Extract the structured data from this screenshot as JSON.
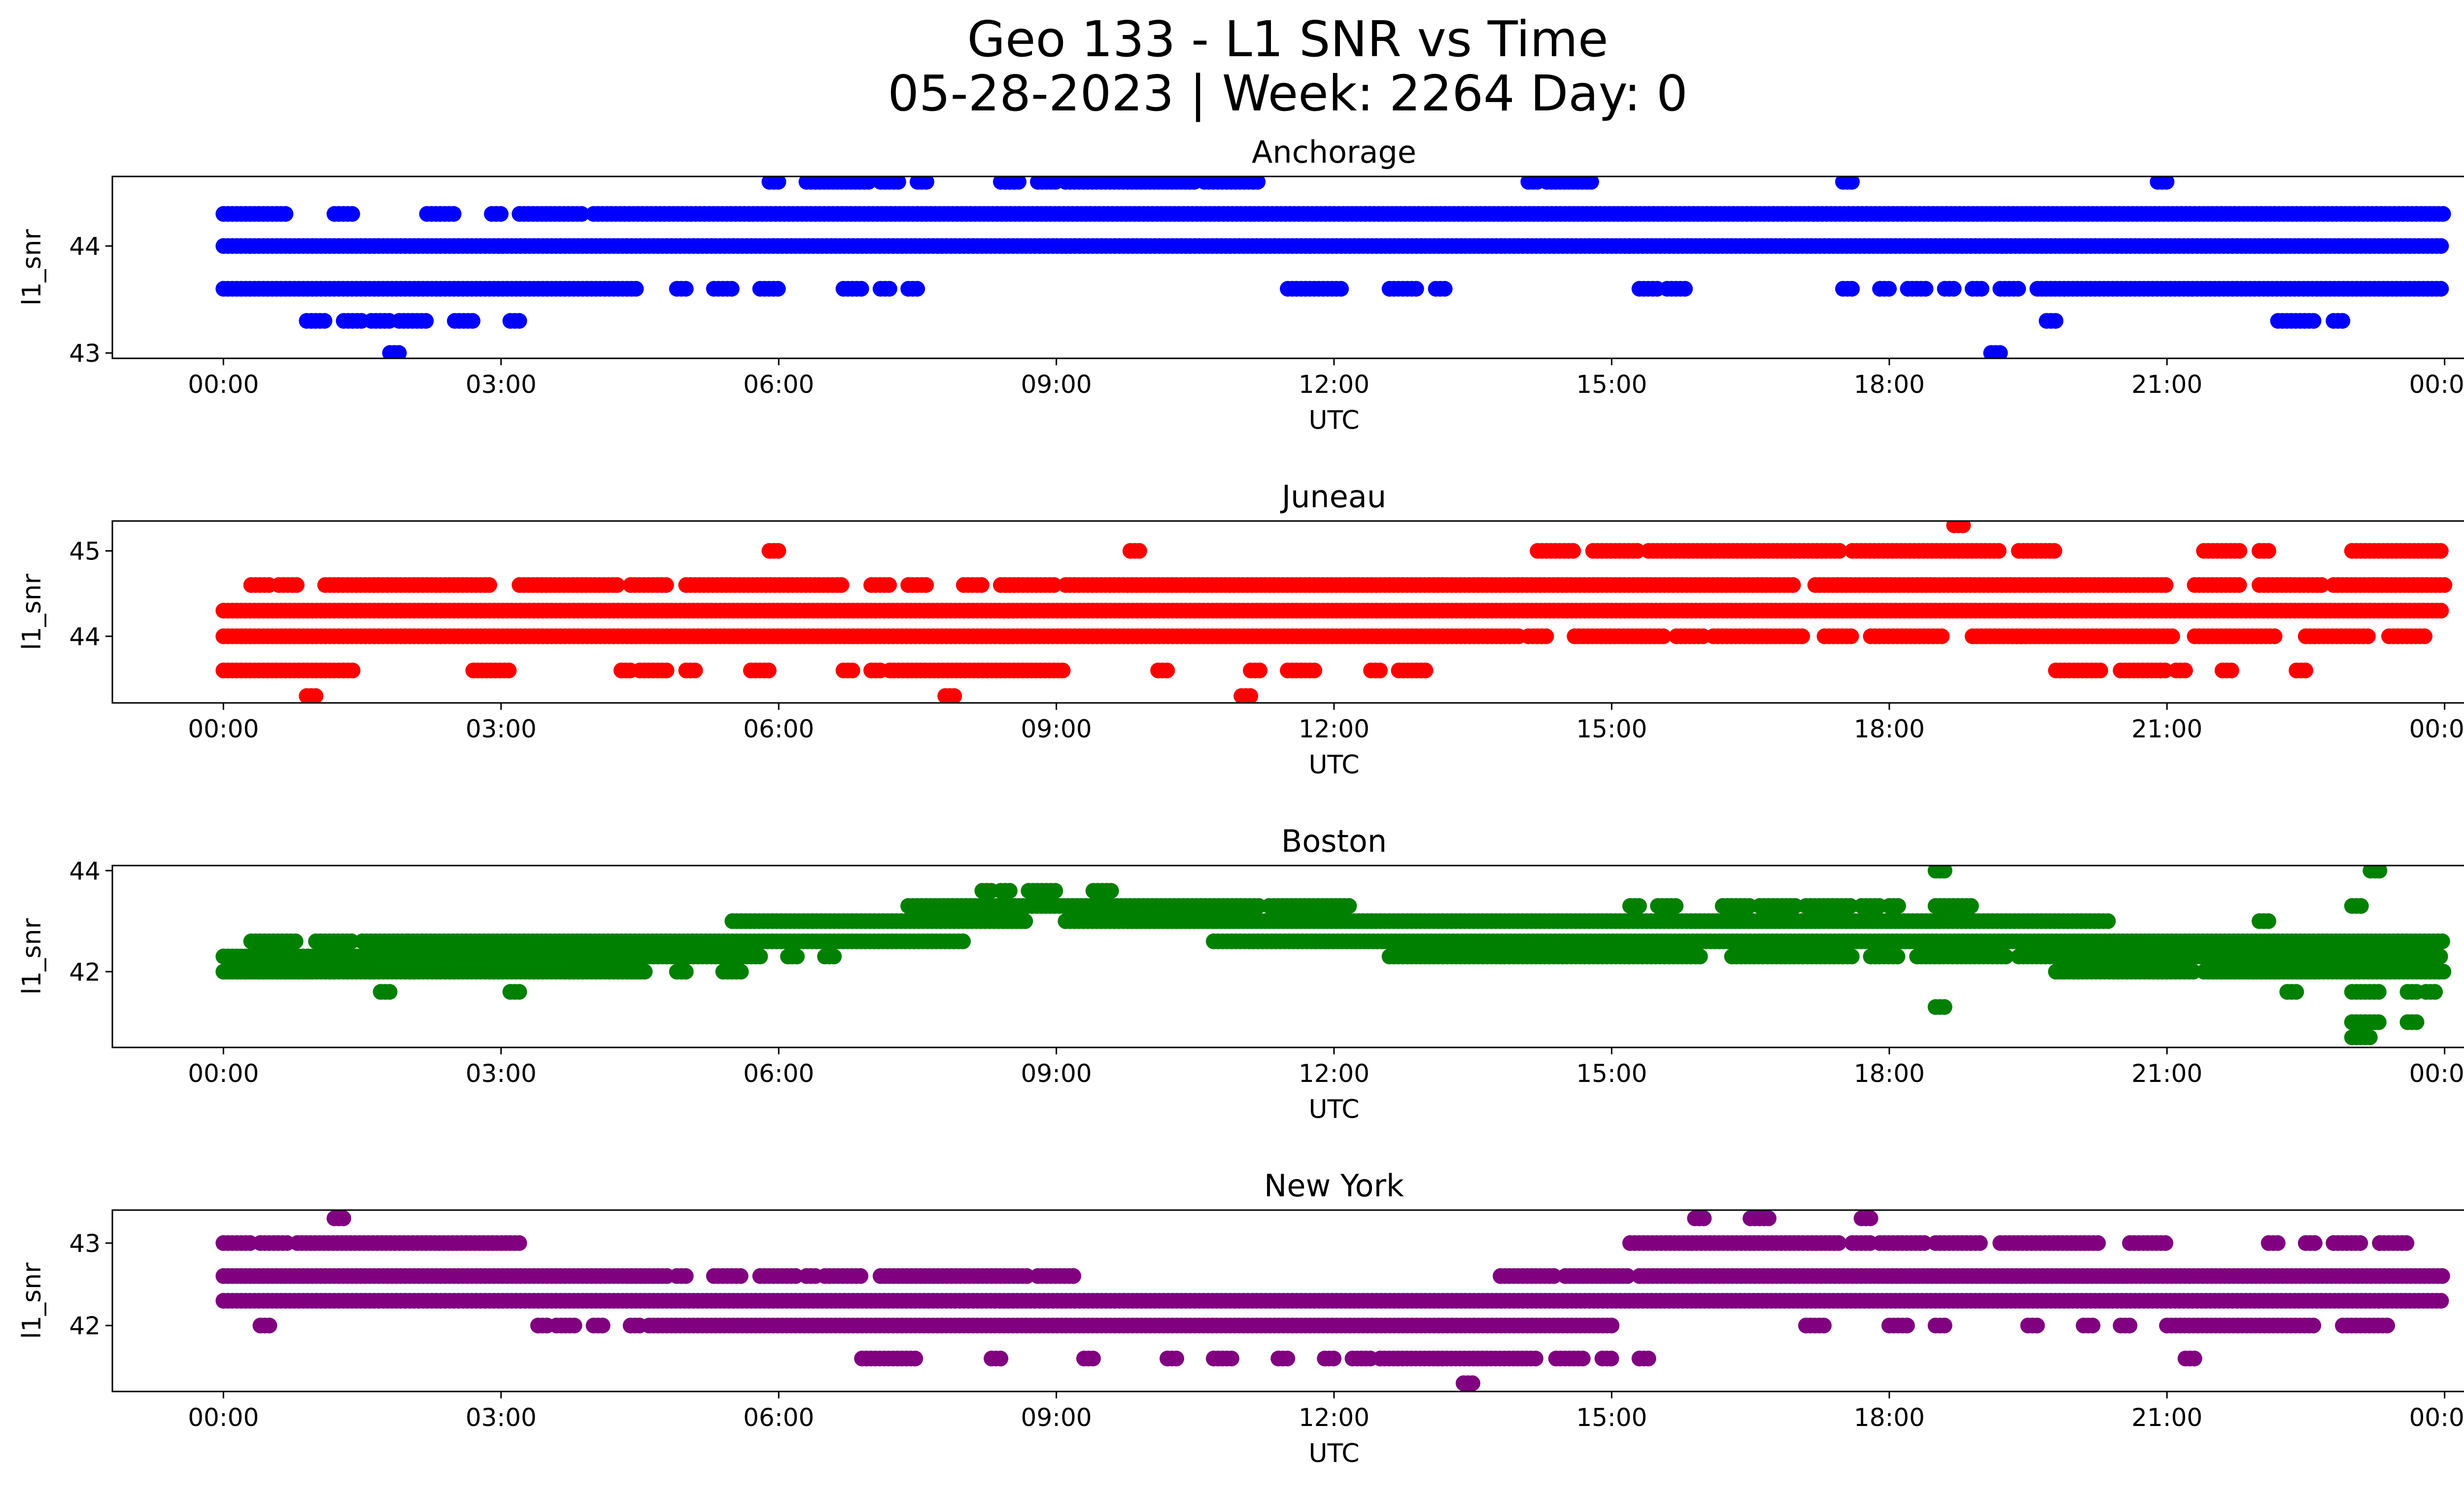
{
  "figure": {
    "title_line1": "Geo 133 - L1 SNR vs Time",
    "title_line2": "05-28-2023 | Week: 2264 Day: 0"
  },
  "chart_data": [
    {
      "type": "scatter",
      "title": "Anchorage",
      "xlabel": "UTC",
      "ylabel": "l1_snr",
      "color": "#0000ff",
      "x_ticks": [
        "00:00",
        "03:00",
        "06:00",
        "09:00",
        "12:00",
        "15:00",
        "18:00",
        "21:00",
        "00:00"
      ],
      "xlim_hours": [
        -1.2,
        25.2
      ],
      "ylim": [
        42.95,
        44.65
      ],
      "y_ticks": [
        43,
        44
      ],
      "levels": [
        {
          "y": 44.0,
          "ranges": [
            [
              0.0,
              24.0
            ]
          ]
        },
        {
          "y": 44.3,
          "ranges": [
            [
              0.0,
              0.7
            ],
            [
              1.2,
              1.4
            ],
            [
              2.2,
              2.5
            ],
            [
              2.9,
              3.0
            ],
            [
              3.2,
              3.9
            ],
            [
              4.0,
              24.0
            ]
          ]
        },
        {
          "y": 43.6,
          "ranges": [
            [
              0.0,
              4.5
            ],
            [
              4.9,
              5.0
            ],
            [
              5.3,
              5.5
            ],
            [
              5.8,
              6.0
            ],
            [
              6.7,
              6.9
            ],
            [
              7.1,
              7.2
            ],
            [
              7.4,
              7.5
            ],
            [
              11.5,
              12.1
            ],
            [
              12.6,
              12.9
            ],
            [
              13.1,
              13.2
            ],
            [
              15.3,
              15.5
            ],
            [
              15.6,
              15.8
            ],
            [
              17.5,
              17.6
            ],
            [
              17.9,
              18.0
            ],
            [
              18.2,
              18.4
            ],
            [
              18.6,
              18.7
            ],
            [
              18.9,
              19.0
            ],
            [
              19.2,
              19.4
            ],
            [
              19.6,
              24.0
            ]
          ]
        },
        {
          "y": 44.6,
          "ranges": [
            [
              5.9,
              6.0
            ],
            [
              6.3,
              7.0
            ],
            [
              7.1,
              7.3
            ],
            [
              7.5,
              7.6
            ],
            [
              8.4,
              8.6
            ],
            [
              8.8,
              9.0
            ],
            [
              9.1,
              10.5
            ],
            [
              10.6,
              11.2
            ],
            [
              14.1,
              14.2
            ],
            [
              14.3,
              14.8
            ],
            [
              17.5,
              17.6
            ],
            [
              20.9,
              21.0
            ]
          ]
        },
        {
          "y": 43.3,
          "ranges": [
            [
              0.9,
              1.1
            ],
            [
              1.3,
              1.5
            ],
            [
              1.6,
              1.8
            ],
            [
              1.9,
              2.2
            ],
            [
              2.5,
              2.7
            ],
            [
              3.1,
              3.2
            ],
            [
              19.7,
              19.8
            ],
            [
              22.2,
              22.6
            ],
            [
              22.8,
              22.9
            ]
          ]
        },
        {
          "y": 43.0,
          "ranges": [
            [
              1.8,
              1.9
            ],
            [
              19.1,
              19.2
            ]
          ]
        }
      ]
    },
    {
      "type": "scatter",
      "title": "Juneau",
      "xlabel": "UTC",
      "ylabel": "l1_snr",
      "color": "#ff0000",
      "x_ticks": [
        "00:00",
        "03:00",
        "06:00",
        "09:00",
        "12:00",
        "15:00",
        "18:00",
        "21:00",
        "00:00"
      ],
      "xlim_hours": [
        -1.2,
        25.2
      ],
      "ylim": [
        43.22,
        45.35
      ],
      "y_ticks": [
        44,
        45
      ],
      "levels": [
        {
          "y": 44.3,
          "ranges": [
            [
              0.0,
              24.0
            ]
          ]
        },
        {
          "y": 44.0,
          "ranges": [
            [
              0.0,
              14.0
            ],
            [
              14.1,
              14.3
            ],
            [
              14.6,
              15.6
            ],
            [
              15.7,
              16.0
            ],
            [
              16.1,
              17.1
            ],
            [
              17.3,
              17.6
            ],
            [
              17.8,
              18.6
            ],
            [
              18.9,
              21.1
            ],
            [
              21.3,
              22.2
            ],
            [
              22.5,
              23.2
            ],
            [
              23.4,
              23.8
            ]
          ]
        },
        {
          "y": 44.6,
          "ranges": [
            [
              0.3,
              0.5
            ],
            [
              0.6,
              0.8
            ],
            [
              1.1,
              2.9
            ],
            [
              3.2,
              4.3
            ],
            [
              4.4,
              4.8
            ],
            [
              5.0,
              6.7
            ],
            [
              7.0,
              7.2
            ],
            [
              7.4,
              7.6
            ],
            [
              8.0,
              8.2
            ],
            [
              8.4,
              9.0
            ],
            [
              9.1,
              17.0
            ],
            [
              17.2,
              21.0
            ],
            [
              21.3,
              21.8
            ],
            [
              22.0,
              22.7
            ],
            [
              22.8,
              24.0
            ]
          ]
        },
        {
          "y": 43.6,
          "ranges": [
            [
              0.0,
              1.3
            ],
            [
              1.3,
              1.4
            ],
            [
              2.7,
              3.1
            ],
            [
              4.3,
              4.4
            ],
            [
              4.5,
              4.8
            ],
            [
              5.0,
              5.1
            ],
            [
              5.7,
              5.9
            ],
            [
              6.7,
              6.8
            ],
            [
              7.0,
              7.1
            ],
            [
              7.2,
              9.1
            ],
            [
              10.1,
              10.2
            ],
            [
              11.1,
              11.2
            ],
            [
              11.5,
              11.8
            ],
            [
              12.4,
              12.5
            ],
            [
              12.7,
              13.0
            ],
            [
              19.8,
              20.3
            ],
            [
              20.5,
              21.0
            ],
            [
              21.1,
              21.2
            ],
            [
              21.6,
              21.7
            ],
            [
              22.4,
              22.5
            ]
          ]
        },
        {
          "y": 45.0,
          "ranges": [
            [
              5.9,
              6.0
            ],
            [
              9.8,
              9.9
            ],
            [
              14.2,
              14.6
            ],
            [
              14.8,
              15.3
            ],
            [
              15.4,
              17.5
            ],
            [
              17.6,
              19.2
            ],
            [
              19.4,
              19.8
            ],
            [
              21.4,
              21.8
            ],
            [
              22.0,
              22.1
            ],
            [
              23.0,
              24.0
            ]
          ]
        },
        {
          "y": 43.3,
          "ranges": [
            [
              0.9,
              1.0
            ],
            [
              7.8,
              7.9
            ],
            [
              11.0,
              11.1
            ]
          ]
        },
        {
          "y": 45.3,
          "ranges": [
            [
              18.7,
              18.8
            ]
          ]
        }
      ]
    },
    {
      "type": "scatter",
      "title": "Boston",
      "xlabel": "UTC",
      "ylabel": "l1_snr",
      "color": "#008000",
      "x_ticks": [
        "00:00",
        "03:00",
        "06:00",
        "09:00",
        "12:00",
        "15:00",
        "18:00",
        "21:00",
        "00:00"
      ],
      "xlim_hours": [
        -1.2,
        25.2
      ],
      "ylim": [
        40.5,
        44.1
      ],
      "y_ticks": [
        42,
        44
      ],
      "levels": [
        {
          "y": 42.0,
          "ranges": [
            [
              0.0,
              4.6
            ],
            [
              4.9,
              5.0
            ],
            [
              5.4,
              5.6
            ],
            [
              19.8,
              21.3
            ],
            [
              21.4,
              24.0
            ]
          ]
        },
        {
          "y": 42.3,
          "ranges": [
            [
              0.0,
              5.8
            ],
            [
              6.1,
              6.2
            ],
            [
              6.5,
              6.6
            ],
            [
              12.6,
              16.0
            ],
            [
              16.3,
              17.6
            ],
            [
              17.8,
              18.1
            ],
            [
              18.3,
              19.3
            ],
            [
              19.4,
              24.0
            ]
          ]
        },
        {
          "y": 42.6,
          "ranges": [
            [
              0.3,
              0.8
            ],
            [
              1.0,
              1.4
            ],
            [
              1.5,
              2.0
            ],
            [
              2.0,
              8.0
            ],
            [
              10.7,
              24.0
            ]
          ]
        },
        {
          "y": 43.0,
          "ranges": [
            [
              5.5,
              8.7
            ],
            [
              9.1,
              20.4
            ],
            [
              22.0,
              22.1
            ]
          ]
        },
        {
          "y": 43.3,
          "ranges": [
            [
              7.4,
              11.2
            ],
            [
              11.3,
              12.2
            ],
            [
              15.2,
              15.3
            ],
            [
              15.5,
              15.7
            ],
            [
              16.2,
              16.5
            ],
            [
              16.6,
              17.0
            ],
            [
              17.1,
              17.6
            ],
            [
              17.7,
              17.9
            ],
            [
              18.0,
              18.1
            ],
            [
              18.5,
              18.9
            ],
            [
              23.0,
              23.1
            ]
          ]
        },
        {
          "y": 43.6,
          "ranges": [
            [
              8.2,
              8.3
            ],
            [
              8.4,
              8.5
            ],
            [
              8.7,
              9.0
            ],
            [
              9.4,
              9.6
            ]
          ]
        },
        {
          "y": 41.6,
          "ranges": [
            [
              1.7,
              1.8
            ],
            [
              3.1,
              3.2
            ],
            [
              22.3,
              22.4
            ],
            [
              23.0,
              23.3
            ],
            [
              23.6,
              23.7
            ],
            [
              23.8,
              23.9
            ]
          ]
        },
        {
          "y": 41.3,
          "ranges": [
            [
              18.5,
              18.6
            ]
          ]
        },
        {
          "y": 41.0,
          "ranges": [
            [
              23.0,
              23.3
            ],
            [
              23.6,
              23.7
            ]
          ]
        },
        {
          "y": 40.7,
          "ranges": [
            [
              23.0,
              23.2
            ]
          ]
        },
        {
          "y": 44.0,
          "ranges": [
            [
              18.5,
              18.6
            ],
            [
              23.2,
              23.3
            ]
          ]
        }
      ]
    },
    {
      "type": "scatter",
      "title": "New York",
      "xlabel": "UTC",
      "ylabel": "l1_snr",
      "color": "#800080",
      "x_ticks": [
        "00:00",
        "03:00",
        "06:00",
        "09:00",
        "12:00",
        "15:00",
        "18:00",
        "21:00",
        "00:00"
      ],
      "xlim_hours": [
        -1.2,
        25.2
      ],
      "ylim": [
        41.2,
        43.4
      ],
      "y_ticks": [
        42,
        43
      ],
      "levels": [
        {
          "y": 42.3,
          "ranges": [
            [
              0.0,
              24.0
            ]
          ]
        },
        {
          "y": 42.6,
          "ranges": [
            [
              0.0,
              4.8
            ],
            [
              4.9,
              5.0
            ],
            [
              5.3,
              5.6
            ],
            [
              5.8,
              6.2
            ],
            [
              6.3,
              6.4
            ],
            [
              6.5,
              6.9
            ],
            [
              7.1,
              8.7
            ],
            [
              8.8,
              9.2
            ],
            [
              13.8,
              14.4
            ],
            [
              14.5,
              15.2
            ],
            [
              15.3,
              24.0
            ]
          ]
        },
        {
          "y": 43.0,
          "ranges": [
            [
              0.0,
              0.3
            ],
            [
              0.4,
              0.7
            ],
            [
              0.8,
              3.2
            ],
            [
              15.2,
              17.5
            ],
            [
              17.6,
              17.8
            ],
            [
              17.9,
              18.4
            ],
            [
              18.5,
              19.0
            ],
            [
              19.2,
              20.3
            ],
            [
              20.6,
              21.0
            ],
            [
              22.1,
              22.2
            ],
            [
              22.5,
              22.6
            ],
            [
              22.8,
              23.1
            ],
            [
              23.3,
              23.6
            ]
          ]
        },
        {
          "y": 42.0,
          "ranges": [
            [
              0.4,
              0.5
            ],
            [
              3.4,
              3.5
            ],
            [
              3.6,
              3.8
            ],
            [
              4.0,
              4.1
            ],
            [
              4.4,
              4.5
            ],
            [
              4.6,
              15.0
            ],
            [
              17.1,
              17.3
            ],
            [
              18.0,
              18.2
            ],
            [
              18.5,
              18.6
            ],
            [
              19.5,
              19.6
            ],
            [
              20.1,
              20.2
            ],
            [
              20.5,
              20.6
            ],
            [
              21.0,
              22.6
            ],
            [
              22.9,
              23.4
            ]
          ]
        },
        {
          "y": 41.6,
          "ranges": [
            [
              6.9,
              7.5
            ],
            [
              8.3,
              8.4
            ],
            [
              9.3,
              9.4
            ],
            [
              10.2,
              10.3
            ],
            [
              10.7,
              10.9
            ],
            [
              11.4,
              11.5
            ],
            [
              11.9,
              12.0
            ],
            [
              12.2,
              12.4
            ],
            [
              12.5,
              14.2
            ],
            [
              14.4,
              14.7
            ],
            [
              14.9,
              15.0
            ],
            [
              15.3,
              15.4
            ],
            [
              21.2,
              21.3
            ]
          ]
        },
        {
          "y": 43.3,
          "ranges": [
            [
              1.2,
              1.3
            ],
            [
              15.9,
              16.0
            ],
            [
              16.5,
              16.6
            ],
            [
              16.6,
              16.7
            ],
            [
              17.7,
              17.8
            ]
          ]
        },
        {
          "y": 41.3,
          "ranges": [
            [
              13.4,
              13.5
            ]
          ]
        }
      ]
    }
  ]
}
